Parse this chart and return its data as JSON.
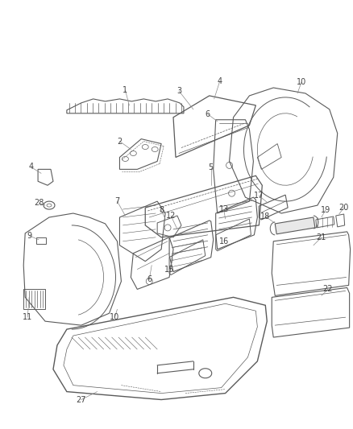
{
  "background_color": "#ffffff",
  "line_color": "#5a5a5a",
  "figure_width": 4.38,
  "figure_height": 5.33,
  "dpi": 100
}
